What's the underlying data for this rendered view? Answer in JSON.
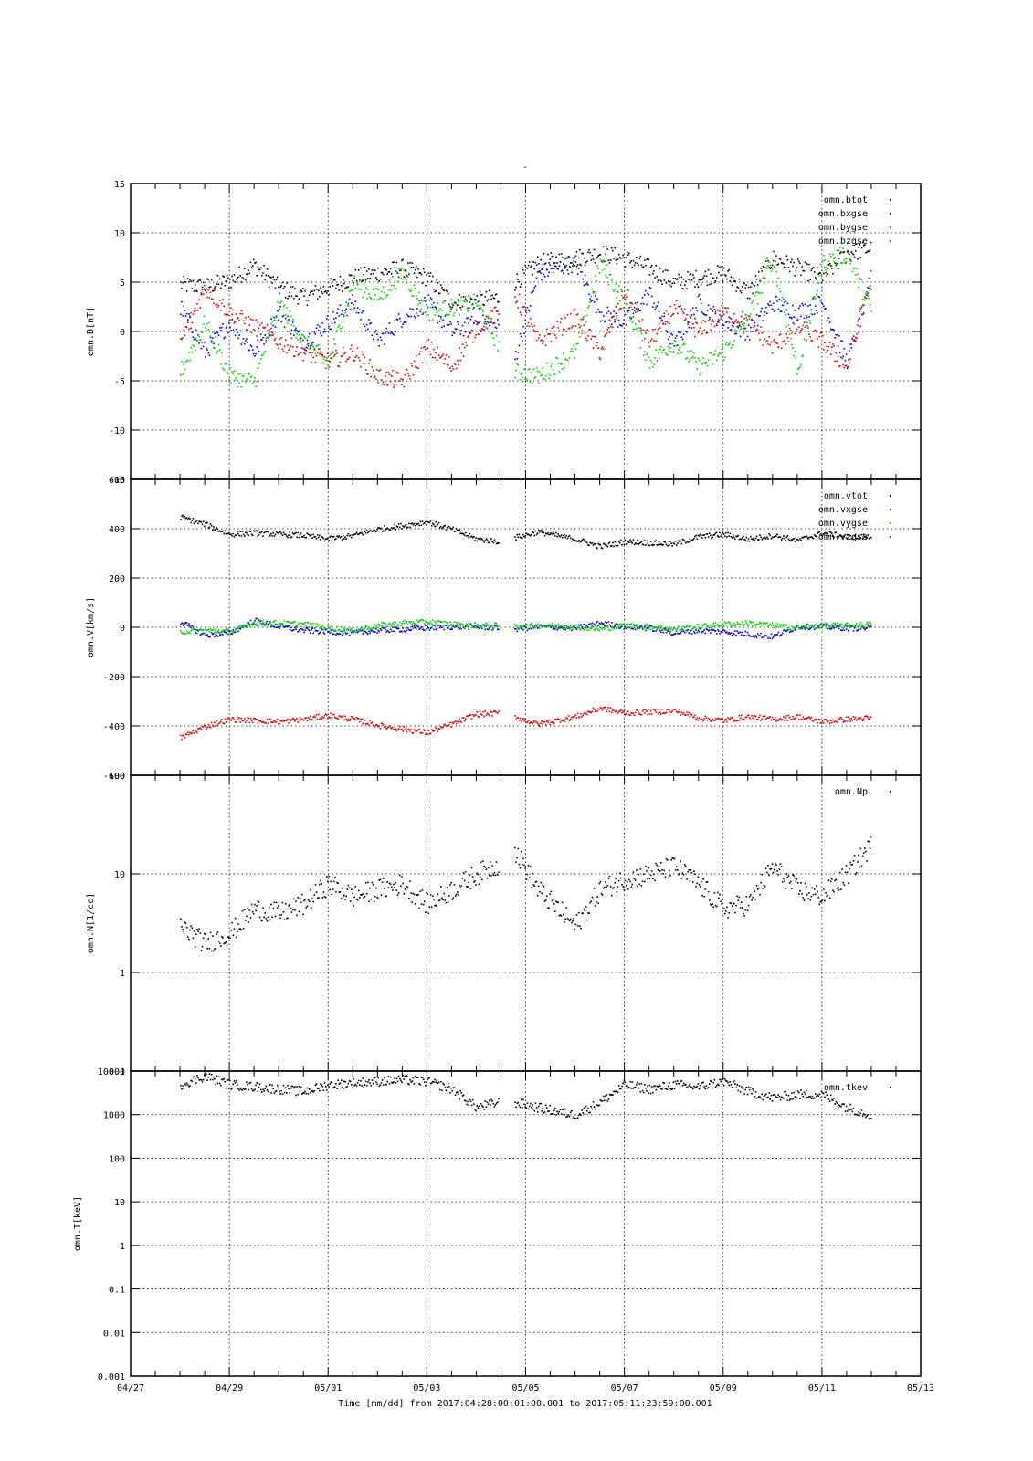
{
  "page": {
    "top_title": "-",
    "time_label": "Time [mm/dd]  from 2017:04:28:00:01:00.001  to  2017:05:11:23:59:00.001"
  },
  "x_axis": {
    "range": [
      "2017-04-27",
      "2017-05-13"
    ],
    "ticks": [
      "2017-04-27",
      "2017-04-29",
      "2017-05-01",
      "2017-05-03",
      "2017-05-05",
      "2017-05-07",
      "2017-05-09",
      "2017-05-11",
      "2017-05-13"
    ],
    "tick_labels": [
      "04/27",
      "04/29",
      "05/01",
      "05/03",
      "05/05",
      "05/07",
      "05/09",
      "05/11",
      "05/13"
    ],
    "data_start": "2017-04-28T00:01:00",
    "data_end": "2017-05-11T23:59:00"
  },
  "chart_data": [
    {
      "type": "scatter",
      "ylabel": "omn.B[nT]",
      "scale": "linear",
      "ylim": [
        -15,
        15
      ],
      "yticks": [
        -15,
        -10,
        -5,
        0,
        5,
        10,
        15
      ],
      "ytick_labels": [
        "-15",
        "-10",
        "-5",
        "0",
        "5",
        "10",
        "15"
      ],
      "grid": true,
      "legend": "top-right",
      "gaps": [
        [
          "2017-05-04T11:00",
          "2017-05-04T18:00"
        ]
      ],
      "series": [
        {
          "name": "omn.btot",
          "color": "#000000",
          "x": [
            "2017-04-28",
            "2017-04-28T12:00",
            "2017-04-29",
            "2017-04-29T12:00",
            "2017-04-30",
            "2017-04-30T12:00",
            "2017-05-01",
            "2017-05-01T12:00",
            "2017-05-02",
            "2017-05-02T12:00",
            "2017-05-03",
            "2017-05-03T12:00",
            "2017-05-04",
            "2017-05-04T11:00",
            "2017-05-04T18:00",
            "2017-05-05T06:00",
            "2017-05-06",
            "2017-05-06T12:00",
            "2017-05-07",
            "2017-05-07T12:00",
            "2017-05-08",
            "2017-05-08T12:00",
            "2017-05-09",
            "2017-05-09T12:00",
            "2017-05-10",
            "2017-05-10T12:00",
            "2017-05-11",
            "2017-05-11T12:00",
            "2017-05-11T23:59"
          ],
          "y": [
            4.8,
            4.6,
            5.2,
            6.8,
            4.5,
            3.5,
            4.5,
            5.5,
            6.0,
            6.5,
            5.5,
            3.0,
            3.2,
            3.5,
            5.0,
            7.0,
            7.5,
            8.0,
            7.5,
            6.5,
            5.0,
            5.5,
            6.0,
            4.0,
            7.5,
            6.5,
            5.5,
            8.0,
            8.5
          ]
        },
        {
          "name": "omn.bxgse",
          "color": "#0000cc",
          "x": [
            "2017-04-28",
            "2017-04-28T12:00",
            "2017-04-29",
            "2017-04-29T12:00",
            "2017-04-30",
            "2017-04-30T12:00",
            "2017-05-01",
            "2017-05-01T12:00",
            "2017-05-02",
            "2017-05-02T12:00",
            "2017-05-03",
            "2017-05-03T12:00",
            "2017-05-04",
            "2017-05-04T11:00",
            "2017-05-04T18:00",
            "2017-05-05T06:00",
            "2017-05-06",
            "2017-05-06T12:00",
            "2017-05-07",
            "2017-05-07T12:00",
            "2017-05-08",
            "2017-05-08T12:00",
            "2017-05-09",
            "2017-05-09T12:00",
            "2017-05-10",
            "2017-05-10T12:00",
            "2017-05-11",
            "2017-05-11T12:00",
            "2017-05-11T23:59"
          ],
          "y": [
            2.5,
            -2.0,
            1.0,
            -2.0,
            2.0,
            -1.0,
            1.0,
            3.0,
            -1.0,
            1.5,
            3.0,
            0.0,
            1.0,
            0.5,
            -3.0,
            6.0,
            7.0,
            2.0,
            1.0,
            4.0,
            -1.5,
            3.0,
            1.0,
            0.0,
            3.0,
            2.0,
            3.0,
            -3.0,
            5.0
          ]
        },
        {
          "name": "omn.bygse",
          "color": "#00cc00",
          "x": [
            "2017-04-28",
            "2017-04-28T12:00",
            "2017-04-29",
            "2017-04-29T12:00",
            "2017-04-30",
            "2017-04-30T12:00",
            "2017-05-01",
            "2017-05-01T12:00",
            "2017-05-02",
            "2017-05-02T12:00",
            "2017-05-03",
            "2017-05-03T12:00",
            "2017-05-04",
            "2017-05-04T11:00",
            "2017-05-04T18:00",
            "2017-05-05T06:00",
            "2017-05-06",
            "2017-05-06T12:00",
            "2017-05-07",
            "2017-05-07T12:00",
            "2017-05-08",
            "2017-05-08T12:00",
            "2017-05-09",
            "2017-05-09T12:00",
            "2017-05-10",
            "2017-05-10T12:00",
            "2017-05-11",
            "2017-05-11T12:00",
            "2017-05-11T23:59"
          ],
          "y": [
            -4.0,
            1.0,
            -4.5,
            -5.0,
            3.0,
            -1.0,
            -3.0,
            5.0,
            3.5,
            6.0,
            2.0,
            2.5,
            3.0,
            -1.5,
            -4.0,
            -4.5,
            -2.0,
            7.0,
            3.0,
            -3.0,
            -1.0,
            -3.5,
            -2.0,
            1.5,
            7.5,
            -4.0,
            7.0,
            8.0,
            2.0
          ]
        },
        {
          "name": "omn.bzgse",
          "color": "#dd0000",
          "x": [
            "2017-04-28",
            "2017-04-28T12:00",
            "2017-04-29",
            "2017-04-29T12:00",
            "2017-04-30",
            "2017-04-30T12:00",
            "2017-05-01",
            "2017-05-01T12:00",
            "2017-05-02",
            "2017-05-02T12:00",
            "2017-05-03",
            "2017-05-03T12:00",
            "2017-05-04",
            "2017-05-04T11:00",
            "2017-05-04T18:00",
            "2017-05-05T06:00",
            "2017-05-06",
            "2017-05-06T12:00",
            "2017-05-07",
            "2017-05-07T12:00",
            "2017-05-08",
            "2017-05-08T12:00",
            "2017-05-09",
            "2017-05-09T12:00",
            "2017-05-10",
            "2017-05-10T12:00",
            "2017-05-11",
            "2017-05-11T12:00",
            "2017-05-11T23:59"
          ],
          "y": [
            -1.0,
            4.5,
            2.0,
            0.5,
            -1.0,
            -2.0,
            -3.0,
            -2.0,
            -4.5,
            -5.0,
            -1.5,
            -3.5,
            0.5,
            2.0,
            4.0,
            -1.0,
            1.5,
            -2.0,
            4.0,
            -1.0,
            2.5,
            0.0,
            2.0,
            1.0,
            -1.5,
            0.5,
            -1.0,
            -3.5,
            6.0
          ]
        }
      ]
    },
    {
      "type": "scatter",
      "ylabel": "omn.V[km/s]",
      "scale": "linear",
      "ylim": [
        -600,
        600
      ],
      "yticks": [
        -600,
        -400,
        -200,
        0,
        200,
        400,
        600
      ],
      "ytick_labels": [
        "-600",
        "-400",
        "-200",
        "0",
        "200",
        "400",
        "600"
      ],
      "grid": true,
      "legend": "top-right",
      "gaps": [
        [
          "2017-05-04T11:00",
          "2017-05-04T18:00"
        ]
      ],
      "series": [
        {
          "name": "omn.vtot",
          "color": "#000000",
          "x": [
            "2017-04-28",
            "2017-04-28T12:00",
            "2017-04-29",
            "2017-04-29T12:00",
            "2017-04-30",
            "2017-04-30T12:00",
            "2017-05-01",
            "2017-05-01T12:00",
            "2017-05-02",
            "2017-05-02T12:00",
            "2017-05-03",
            "2017-05-03T12:00",
            "2017-05-04",
            "2017-05-04T11:00",
            "2017-05-04T18:00",
            "2017-05-05T06:00",
            "2017-05-06",
            "2017-05-06T12:00",
            "2017-05-07",
            "2017-05-07T12:00",
            "2017-05-08",
            "2017-05-08T12:00",
            "2017-05-09",
            "2017-05-09T12:00",
            "2017-05-10",
            "2017-05-10T12:00",
            "2017-05-11",
            "2017-05-11T12:00",
            "2017-05-11T23:59"
          ],
          "y": [
            450,
            420,
            380,
            385,
            380,
            375,
            360,
            375,
            400,
            415,
            430,
            400,
            360,
            350,
            365,
            390,
            360,
            330,
            350,
            345,
            340,
            370,
            380,
            360,
            375,
            355,
            385,
            370,
            370
          ]
        },
        {
          "name": "omn.vxgse",
          "color": "#0000cc",
          "x": [
            "2017-04-28",
            "2017-04-28T12:00",
            "2017-04-29",
            "2017-04-29T12:00",
            "2017-04-30",
            "2017-04-30T12:00",
            "2017-05-01",
            "2017-05-01T12:00",
            "2017-05-02",
            "2017-05-02T12:00",
            "2017-05-03",
            "2017-05-03T12:00",
            "2017-05-04",
            "2017-05-04T11:00",
            "2017-05-04T18:00",
            "2017-05-05T06:00",
            "2017-05-06",
            "2017-05-06T12:00",
            "2017-05-07",
            "2017-05-07T12:00",
            "2017-05-08",
            "2017-05-08T12:00",
            "2017-05-09",
            "2017-05-09T12:00",
            "2017-05-10",
            "2017-05-10T12:00",
            "2017-05-11",
            "2017-05-11T12:00",
            "2017-05-11T23:59"
          ],
          "y": [
            25,
            -30,
            -20,
            30,
            5,
            -10,
            -15,
            -20,
            -10,
            -5,
            0,
            5,
            5,
            0,
            -5,
            5,
            0,
            20,
            5,
            0,
            -20,
            -10,
            -15,
            -25,
            -35,
            5,
            5,
            0,
            0
          ]
        },
        {
          "name": "omn.vygse",
          "color": "#00cc00",
          "x": [
            "2017-04-28",
            "2017-04-28T12:00",
            "2017-04-29",
            "2017-04-29T12:00",
            "2017-04-30",
            "2017-04-30T12:00",
            "2017-05-01",
            "2017-05-01T12:00",
            "2017-05-02",
            "2017-05-02T12:00",
            "2017-05-03",
            "2017-05-03T12:00",
            "2017-05-04",
            "2017-05-04T11:00",
            "2017-05-04T18:00",
            "2017-05-05T06:00",
            "2017-05-06",
            "2017-05-06T12:00",
            "2017-05-07",
            "2017-05-07T12:00",
            "2017-05-08",
            "2017-05-08T12:00",
            "2017-05-09",
            "2017-05-09T12:00",
            "2017-05-10",
            "2017-05-10T12:00",
            "2017-05-11",
            "2017-05-11T12:00",
            "2017-05-11T23:59"
          ],
          "y": [
            -15,
            -10,
            -15,
            20,
            20,
            15,
            0,
            -10,
            10,
            20,
            25,
            15,
            10,
            10,
            5,
            10,
            5,
            -5,
            10,
            5,
            -5,
            5,
            15,
            20,
            10,
            0,
            10,
            10,
            15
          ]
        },
        {
          "name": "omn.vzgse",
          "color": "#dd0000",
          "x": [
            "2017-04-28",
            "2017-04-28T12:00",
            "2017-04-29",
            "2017-04-29T12:00",
            "2017-04-30",
            "2017-04-30T12:00",
            "2017-05-01",
            "2017-05-01T12:00",
            "2017-05-02",
            "2017-05-02T12:00",
            "2017-05-03",
            "2017-05-03T12:00",
            "2017-05-04",
            "2017-05-04T11:00",
            "2017-05-04T18:00",
            "2017-05-05T06:00",
            "2017-05-06",
            "2017-05-06T12:00",
            "2017-05-07",
            "2017-05-07T12:00",
            "2017-05-08",
            "2017-05-08T12:00",
            "2017-05-09",
            "2017-05-09T12:00",
            "2017-05-10",
            "2017-05-10T12:00",
            "2017-05-11",
            "2017-05-11T12:00",
            "2017-05-11T23:59"
          ],
          "y": [
            -445,
            -400,
            -370,
            -375,
            -380,
            -370,
            -355,
            -370,
            -395,
            -410,
            -425,
            -390,
            -350,
            -345,
            -360,
            -390,
            -360,
            -325,
            -345,
            -340,
            -335,
            -365,
            -375,
            -360,
            -370,
            -360,
            -380,
            -370,
            -365
          ]
        }
      ]
    },
    {
      "type": "scatter",
      "ylabel": "omn.N[1/cc]",
      "scale": "log",
      "ylim": [
        0.1,
        100
      ],
      "yticks": [
        0.1,
        1,
        10,
        100
      ],
      "ytick_labels": [
        "0.1",
        "1",
        "10",
        "100"
      ],
      "grid": true,
      "legend": "top-right",
      "gaps": [
        [
          "2017-05-04T11:00",
          "2017-05-04T18:00"
        ]
      ],
      "series": [
        {
          "name": "omn.Np",
          "color": "#000000",
          "x": [
            "2017-04-28",
            "2017-04-28T12:00",
            "2017-04-29",
            "2017-04-29T12:00",
            "2017-04-30",
            "2017-04-30T12:00",
            "2017-05-01",
            "2017-05-01T12:00",
            "2017-05-02",
            "2017-05-02T12:00",
            "2017-05-03",
            "2017-05-03T12:00",
            "2017-05-04",
            "2017-05-04T11:00",
            "2017-05-04T18:00",
            "2017-05-05T06:00",
            "2017-05-06",
            "2017-05-06T12:00",
            "2017-05-07",
            "2017-05-07T12:00",
            "2017-05-08",
            "2017-05-08T12:00",
            "2017-05-09",
            "2017-05-09T12:00",
            "2017-05-10",
            "2017-05-10T12:00",
            "2017-05-11",
            "2017-05-11T12:00",
            "2017-05-11T23:59"
          ],
          "y": [
            3,
            2,
            2.5,
            4.5,
            4,
            5,
            8,
            6,
            7,
            8,
            5,
            7,
            10,
            13,
            18,
            7,
            3,
            7,
            9,
            10,
            12,
            8,
            4.5,
            5,
            12,
            7,
            6,
            10,
            20
          ]
        }
      ]
    },
    {
      "type": "scatter",
      "ylabel": "omn.T[keV]",
      "scale": "log",
      "ylim": [
        0.001,
        10000
      ],
      "yticks": [
        0.001,
        0.01,
        0.1,
        1,
        10,
        100,
        1000,
        10000
      ],
      "ytick_labels": [
        "0.001",
        "0.01",
        "0.1",
        "1",
        "10",
        "100",
        "1000",
        "10000"
      ],
      "grid": true,
      "legend": "top-right",
      "gaps": [
        [
          "2017-05-04T11:00",
          "2017-05-04T18:00"
        ]
      ],
      "series": [
        {
          "name": "omn.tkev",
          "color": "#000000",
          "x": [
            "2017-04-28",
            "2017-04-28T12:00",
            "2017-04-29",
            "2017-04-29T12:00",
            "2017-04-30",
            "2017-04-30T12:00",
            "2017-05-01",
            "2017-05-01T12:00",
            "2017-05-02",
            "2017-05-02T12:00",
            "2017-05-03",
            "2017-05-03T12:00",
            "2017-05-04",
            "2017-05-04T11:00",
            "2017-05-04T18:00",
            "2017-05-05T06:00",
            "2017-05-06",
            "2017-05-06T12:00",
            "2017-05-07",
            "2017-05-07T12:00",
            "2017-05-08",
            "2017-05-08T12:00",
            "2017-05-09",
            "2017-05-09T12:00",
            "2017-05-10",
            "2017-05-10T12:00",
            "2017-05-11",
            "2017-05-11T12:00",
            "2017-05-11T23:59"
          ],
          "y": [
            5000,
            8000,
            5000,
            4500,
            4000,
            3500,
            5000,
            5500,
            6000,
            6500,
            6000,
            4000,
            1500,
            2000,
            2000,
            1500,
            1000,
            2000,
            5000,
            4000,
            5000,
            4500,
            6000,
            3500,
            2500,
            3000,
            3000,
            1500,
            1000
          ]
        }
      ]
    }
  ]
}
